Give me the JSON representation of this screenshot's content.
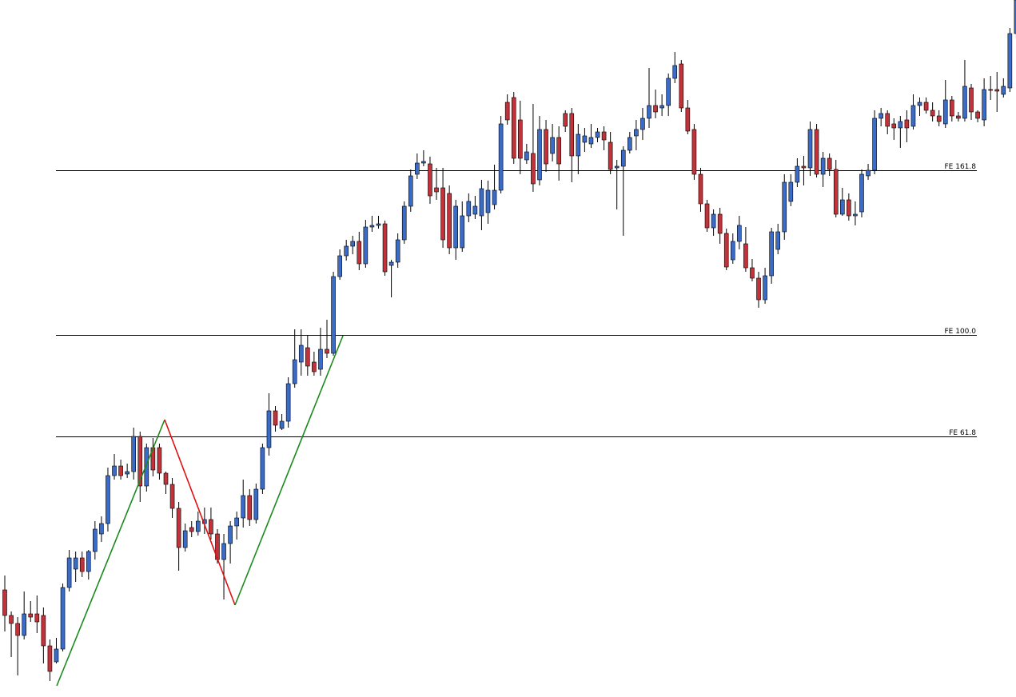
{
  "chart_data": {
    "type": "candlestick",
    "title": "",
    "xlabel": "",
    "ylabel": "",
    "grid": false,
    "colors": {
      "bull": "#3a6bc6",
      "bear": "#c0333a",
      "wick": "#000000",
      "fe_line": "#000000",
      "impulse": "#1c8a1c",
      "correction": "#e01010"
    },
    "fe_levels": [
      {
        "label": "FE 161.8",
        "level": 161.8
      },
      {
        "label": "FE 100.0",
        "level": 100.0
      },
      {
        "label": "FE 61.8",
        "level": 61.8
      }
    ],
    "candles": [
      [
        738,
        770,
        720,
        790
      ],
      [
        770,
        780,
        765,
        822
      ],
      [
        780,
        795,
        772,
        845
      ],
      [
        795,
        768,
        740,
        800
      ],
      [
        768,
        772,
        752,
        778
      ],
      [
        768,
        778,
        745,
        792
      ],
      [
        770,
        808,
        760,
        830
      ],
      [
        808,
        840,
        800,
        852
      ],
      [
        828,
        812,
        798,
        830
      ],
      [
        812,
        735,
        730,
        815
      ],
      [
        735,
        698,
        688,
        740
      ],
      [
        712,
        698,
        690,
        728
      ],
      [
        698,
        715,
        690,
        722
      ],
      [
        715,
        690,
        688,
        725
      ],
      [
        690,
        662,
        652,
        700
      ],
      [
        668,
        655,
        646,
        678
      ],
      [
        655,
        595,
        585,
        665
      ],
      [
        595,
        583,
        568,
        600
      ],
      [
        583,
        595,
        575,
        600
      ],
      [
        593,
        590,
        580,
        598
      ],
      [
        590,
        546,
        535,
        600
      ],
      [
        546,
        608,
        540,
        628
      ],
      [
        608,
        560,
        555,
        615
      ],
      [
        560,
        588,
        548,
        596
      ],
      [
        560,
        592,
        555,
        600
      ],
      [
        592,
        606,
        590,
        618
      ],
      [
        606,
        636,
        598,
        648
      ],
      [
        636,
        685,
        628,
        714
      ],
      [
        685,
        664,
        655,
        690
      ],
      [
        660,
        665,
        652,
        672
      ],
      [
        665,
        652,
        640,
        670
      ],
      [
        655,
        650,
        635,
        668
      ],
      [
        650,
        668,
        635,
        675
      ],
      [
        668,
        700,
        662,
        705
      ],
      [
        700,
        680,
        668,
        750
      ],
      [
        680,
        658,
        652,
        705
      ],
      [
        658,
        648,
        640,
        675
      ],
      [
        648,
        620,
        600,
        660
      ],
      [
        620,
        650,
        612,
        658
      ],
      [
        650,
        612,
        605,
        655
      ],
      [
        612,
        560,
        555,
        618
      ],
      [
        560,
        514,
        492,
        570
      ],
      [
        514,
        532,
        508,
        540
      ],
      [
        536,
        527,
        518,
        538
      ],
      [
        527,
        480,
        472,
        535
      ],
      [
        480,
        450,
        412,
        485
      ],
      [
        453,
        432,
        412,
        470
      ],
      [
        435,
        458,
        420,
        470
      ],
      [
        453,
        465,
        440,
        470
      ],
      [
        462,
        437,
        410,
        470
      ],
      [
        437,
        442,
        400,
        448
      ],
      [
        442,
        346,
        340,
        445
      ],
      [
        346,
        320,
        312,
        350
      ],
      [
        320,
        308,
        300,
        326
      ],
      [
        308,
        302,
        295,
        318
      ],
      [
        302,
        330,
        290,
        338
      ],
      [
        330,
        284,
        275,
        335
      ],
      [
        284,
        282,
        270,
        290
      ],
      [
        282,
        280,
        270,
        286
      ],
      [
        280,
        340,
        276,
        345
      ],
      [
        332,
        328,
        325,
        372
      ],
      [
        328,
        300,
        292,
        335
      ],
      [
        300,
        258,
        252,
        305
      ],
      [
        258,
        220,
        212,
        265
      ],
      [
        218,
        204,
        192,
        224
      ],
      [
        204,
        202,
        188,
        208
      ],
      [
        205,
        245,
        196,
        255
      ],
      [
        235,
        240,
        210,
        250
      ],
      [
        235,
        300,
        210,
        310
      ],
      [
        242,
        310,
        232,
        318
      ],
      [
        310,
        258,
        250,
        325
      ],
      [
        310,
        270,
        252,
        315
      ],
      [
        270,
        252,
        242,
        278
      ],
      [
        268,
        258,
        245,
        274
      ],
      [
        270,
        236,
        225,
        288
      ],
      [
        266,
        238,
        226,
        280
      ],
      [
        256,
        238,
        206,
        262
      ],
      [
        238,
        155,
        145,
        242
      ],
      [
        128,
        150,
        118,
        156
      ],
      [
        122,
        198,
        115,
        205
      ],
      [
        150,
        198,
        126,
        218
      ],
      [
        200,
        190,
        180,
        205
      ],
      [
        192,
        230,
        130,
        240
      ],
      [
        225,
        162,
        145,
        232
      ],
      [
        162,
        205,
        150,
        215
      ],
      [
        192,
        172,
        155,
        202
      ],
      [
        172,
        205,
        158,
        226
      ],
      [
        142,
        158,
        138,
        165
      ],
      [
        142,
        195,
        135,
        228
      ],
      [
        195,
        168,
        155,
        218
      ],
      [
        178,
        170,
        160,
        190
      ],
      [
        180,
        172,
        155,
        185
      ],
      [
        172,
        165,
        160,
        178
      ],
      [
        165,
        175,
        158,
        188
      ],
      [
        178,
        212,
        165,
        218
      ],
      [
        210,
        208,
        200,
        262
      ],
      [
        208,
        188,
        183,
        295
      ],
      [
        188,
        172,
        165,
        192
      ],
      [
        170,
        162,
        150,
        188
      ],
      [
        162,
        148,
        135,
        175
      ],
      [
        148,
        132,
        85,
        160
      ],
      [
        132,
        140,
        112,
        148
      ],
      [
        135,
        132,
        118,
        145
      ],
      [
        132,
        98,
        92,
        145
      ],
      [
        98,
        82,
        65,
        104
      ],
      [
        80,
        135,
        75,
        140
      ],
      [
        135,
        164,
        125,
        168
      ],
      [
        162,
        218,
        155,
        225
      ],
      [
        218,
        255,
        210,
        265
      ],
      [
        255,
        285,
        250,
        290
      ],
      [
        285,
        268,
        262,
        295
      ],
      [
        268,
        292,
        260,
        305
      ],
      [
        292,
        334,
        286,
        338
      ],
      [
        325,
        302,
        292,
        330
      ],
      [
        302,
        282,
        270,
        312
      ],
      [
        305,
        335,
        284,
        340
      ],
      [
        335,
        348,
        324,
        352
      ],
      [
        348,
        375,
        340,
        385
      ],
      [
        375,
        345,
        335,
        380
      ],
      [
        345,
        290,
        285,
        355
      ],
      [
        312,
        290,
        280,
        318
      ],
      [
        290,
        228,
        218,
        300
      ],
      [
        252,
        228,
        218,
        258
      ],
      [
        228,
        208,
        198,
        234
      ],
      [
        208,
        210,
        195,
        232
      ],
      [
        210,
        162,
        152,
        220
      ],
      [
        162,
        218,
        155,
        222
      ],
      [
        218,
        198,
        190,
        234
      ],
      [
        198,
        212,
        192,
        220
      ],
      [
        212,
        268,
        200,
        272
      ],
      [
        268,
        250,
        235,
        270
      ],
      [
        250,
        270,
        242,
        276
      ],
      [
        270,
        268,
        252,
        282
      ],
      [
        265,
        218,
        212,
        272
      ],
      [
        220,
        213,
        205,
        225
      ],
      [
        213,
        148,
        138,
        218
      ],
      [
        148,
        142,
        135,
        158
      ],
      [
        142,
        158,
        138,
        168
      ],
      [
        155,
        160,
        148,
        175
      ],
      [
        160,
        152,
        145,
        185
      ],
      [
        150,
        160,
        138,
        178
      ],
      [
        158,
        132,
        118,
        162
      ],
      [
        132,
        128,
        122,
        145
      ],
      [
        128,
        138,
        122,
        142
      ],
      [
        138,
        145,
        128,
        152
      ],
      [
        145,
        152,
        138,
        158
      ],
      [
        155,
        125,
        100,
        160
      ],
      [
        125,
        145,
        120,
        152
      ],
      [
        145,
        148,
        140,
        152
      ],
      [
        148,
        108,
        75,
        152
      ],
      [
        110,
        140,
        105,
        150
      ],
      [
        140,
        148,
        138,
        153
      ],
      [
        150,
        112,
        98,
        158
      ],
      [
        112,
        112,
        95,
        125
      ],
      [
        112,
        114,
        90,
        140
      ],
      [
        118,
        108,
        98,
        122
      ],
      [
        110,
        42,
        35,
        115
      ],
      [
        42,
        0,
        0,
        48
      ],
      [
        8,
        4,
        0,
        25
      ]
    ]
  }
}
